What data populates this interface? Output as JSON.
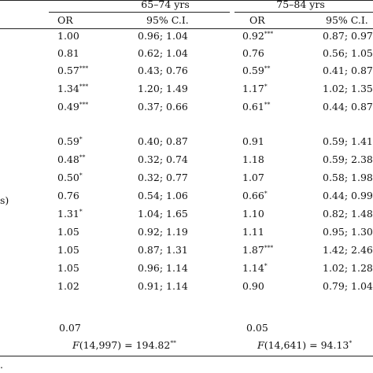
{
  "table": {
    "groups": [
      {
        "label": "65–74 yrs"
      },
      {
        "label": "75–84 yrs"
      }
    ],
    "col_headers": {
      "or": "OR",
      "ci": "95% C.I.",
      "or2": "OR",
      "ci2": "95% C.I."
    },
    "row_stub_fragment": "s)",
    "rows": [
      {
        "or1": "1.00",
        "sig1": "",
        "ci1": "0.96; 1.04",
        "or2": "0.92",
        "sig2": "***",
        "ci2": "0.87; 0.97"
      },
      {
        "or1": "0.81",
        "sig1": "",
        "ci1": "0.62; 1.04",
        "or2": "0.76",
        "sig2": "",
        "ci2": "0.56; 1.05"
      },
      {
        "or1": "0.57",
        "sig1": "***",
        "ci1": "0.43; 0.76",
        "or2": "0.59",
        "sig2": "**",
        "ci2": "0.41; 0.87"
      },
      {
        "or1": "1.34",
        "sig1": "***",
        "ci1": "1.20; 1.49",
        "or2": "1.17",
        "sig2": "*",
        "ci2": "1.02; 1.35"
      },
      {
        "or1": "0.49",
        "sig1": "***",
        "ci1": "0.37; 0.66",
        "or2": "0.61",
        "sig2": "**",
        "ci2": "0.44; 0.87"
      },
      {
        "or1": "0.59",
        "sig1": "*",
        "ci1": "0.40; 0.87",
        "or2": "0.91",
        "sig2": "",
        "ci2": "0.59; 1.41"
      },
      {
        "or1": "0.48",
        "sig1": "**",
        "ci1": "0.32; 0.74",
        "or2": "1.18",
        "sig2": "",
        "ci2": "0.59; 2.38"
      },
      {
        "or1": "0.50",
        "sig1": "*",
        "ci1": "0.32; 0.77",
        "or2": "1.07",
        "sig2": "",
        "ci2": "0.58; 1.98"
      },
      {
        "or1": "0.76",
        "sig1": "",
        "ci1": "0.54; 1.06",
        "or2": "0.66",
        "sig2": "*",
        "ci2": "0.44; 0.99"
      },
      {
        "or1": "1.31",
        "sig1": "*",
        "ci1": "1.04; 1.65",
        "or2": "1.10",
        "sig2": "",
        "ci2": "0.82; 1.48"
      },
      {
        "or1": "1.05",
        "sig1": "",
        "ci1": "0.92; 1.19",
        "or2": "1.11",
        "sig2": "",
        "ci2": "0.95; 1.30"
      },
      {
        "or1": "1.05",
        "sig1": "",
        "ci1": "0.87; 1.31",
        "or2": "1.87",
        "sig2": "***",
        "ci2": "1.42; 2.46"
      },
      {
        "or1": "1.05",
        "sig1": "",
        "ci1": "0.96; 1.14",
        "or2": "1.14",
        "sig2": "*",
        "ci2": "1.02; 1.28"
      },
      {
        "or1": "1.02",
        "sig1": "",
        "ci1": "0.91; 1.14",
        "or2": "0.90",
        "sig2": "",
        "ci2": "0.79; 1.04"
      }
    ],
    "r2": {
      "v1": "0.07",
      "v2": "0.05"
    },
    "ftest": {
      "f_letter": "F",
      "df1": "(14,997) = 194.82",
      "sig1": "**",
      "df2": "(14,641) = 94.13",
      "sig2": "*"
    },
    "footnote_fragment": "."
  }
}
